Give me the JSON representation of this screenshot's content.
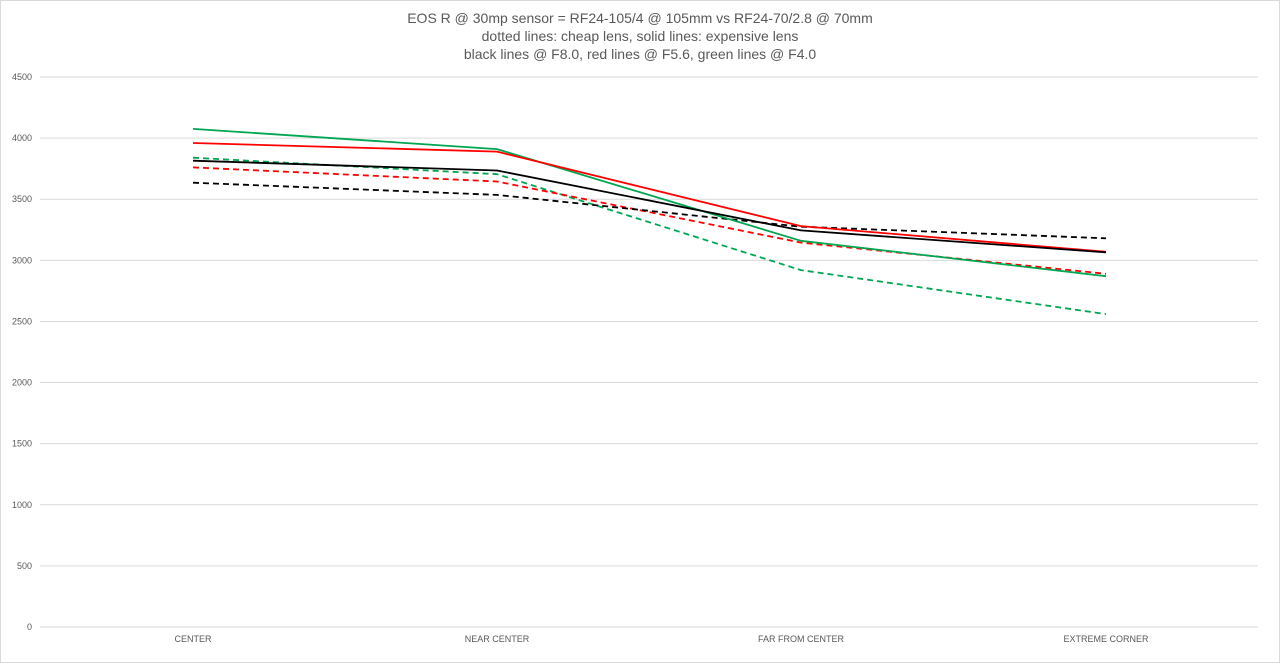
{
  "chart_data": {
    "type": "line",
    "title_lines": [
      "EOS R @ 30mp sensor = RF24-105/4 @ 105mm vs RF24-70/2.8 @ 70mm",
      "dotted lines: cheap lens, solid lines: expensive lens",
      "black lines @ F8.0, red lines @ F5.6, green lines @ F4.0"
    ],
    "categories": [
      "CENTER",
      "NEAR CENTER",
      "FAR FROM CENTER",
      "EXTREME CORNER"
    ],
    "ylim": [
      0,
      4500
    ],
    "yticks": [
      0,
      500,
      1000,
      1500,
      2000,
      2500,
      3000,
      3500,
      4000,
      4500
    ],
    "grid": true,
    "series": [
      {
        "color": "#00a651",
        "style": "solid",
        "values": [
          4075,
          3910,
          3160,
          2870
        ]
      },
      {
        "color": "#ff0000",
        "style": "solid",
        "values": [
          3960,
          3890,
          3280,
          3070
        ]
      },
      {
        "color": "#000000",
        "style": "solid",
        "values": [
          3815,
          3735,
          3245,
          3065
        ]
      },
      {
        "color": "#00a651",
        "style": "dashed",
        "values": [
          3840,
          3705,
          2920,
          2560
        ]
      },
      {
        "color": "#ff0000",
        "style": "dashed",
        "values": [
          3760,
          3645,
          3145,
          2890
        ]
      },
      {
        "color": "#000000",
        "style": "dashed",
        "values": [
          3635,
          3535,
          3275,
          3180
        ]
      }
    ]
  }
}
